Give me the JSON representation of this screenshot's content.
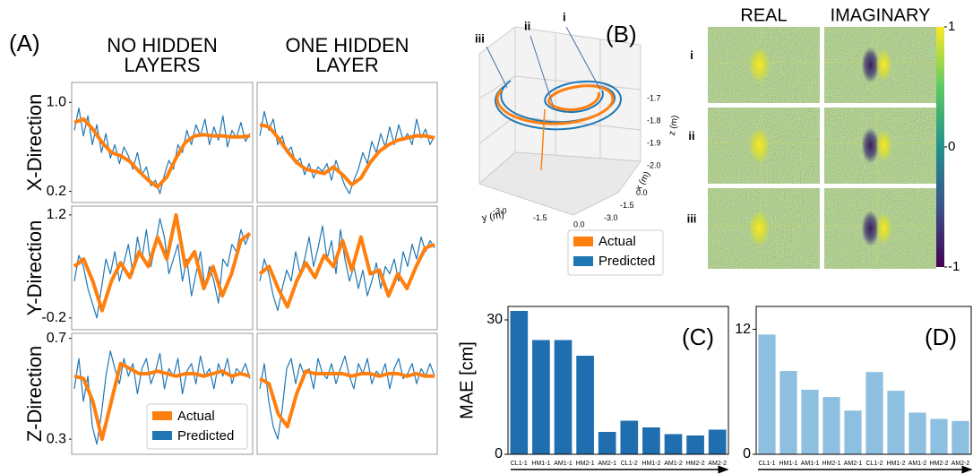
{
  "chart_data": [
    {
      "type": "line-grid",
      "label": "(A)",
      "columns": [
        [
          "NO HIDDEN",
          "LAYERS"
        ],
        [
          "ONE HIDDEN",
          "LAYER"
        ]
      ],
      "series": [
        {
          "name": "Actual",
          "color": "#ff7f0e"
        },
        {
          "name": "Predicted",
          "color": "#1f77b4"
        }
      ],
      "legend": "lower right",
      "rows": [
        {
          "label": "X-Direction",
          "ylim": [
            0.1,
            1.18
          ],
          "yticks": [
            {
              "value": 1,
              "label": "1.0"
            },
            0.2
          ],
          "cells": [
            [
              [
                0.82,
                0.85,
                0.76,
                0.64,
                0.55,
                0.52,
                0.47,
                0.38,
                0.3,
                0.24,
                0.33,
                0.5,
                0.64,
                0.7,
                0.71,
                0.7,
                0.7,
                0.69,
                0.69,
                0.7
              ],
              [
                0.75,
                0.95,
                0.7,
                0.88,
                0.62,
                0.8,
                0.55,
                0.72,
                0.5,
                0.62,
                0.45,
                0.6,
                0.52,
                0.4,
                0.55,
                0.35,
                0.42,
                0.25,
                0.3,
                0.18,
                0.35,
                0.48,
                0.4,
                0.62,
                0.55,
                0.75,
                0.62,
                0.8,
                0.7,
                0.85,
                0.62,
                0.78,
                0.66,
                0.88,
                0.6,
                0.75,
                0.68,
                0.82,
                0.65,
                0.72
              ]
            ],
            [
              [
                0.8,
                0.78,
                0.68,
                0.56,
                0.46,
                0.4,
                0.38,
                0.36,
                0.42,
                0.35,
                0.26,
                0.32,
                0.46,
                0.56,
                0.62,
                0.66,
                0.68,
                0.7,
                0.7,
                0.68
              ],
              [
                0.7,
                0.92,
                0.75,
                0.85,
                0.62,
                0.7,
                0.55,
                0.6,
                0.45,
                0.5,
                0.35,
                0.45,
                0.32,
                0.42,
                0.38,
                0.45,
                0.3,
                0.48,
                0.36,
                0.25,
                0.18,
                0.3,
                0.4,
                0.55,
                0.45,
                0.65,
                0.55,
                0.72,
                0.6,
                0.78,
                0.62,
                0.8,
                0.66,
                0.72,
                0.62,
                0.85,
                0.68,
                0.76,
                0.62,
                0.7
              ]
            ]
          ]
        },
        {
          "label": "Y-Direction",
          "ylim": [
            -0.36,
            1.32
          ],
          "yticks": [
            1.2,
            -0.2
          ],
          "cells": [
            [
              [
                0.5,
                0.6,
                0.3,
                -0.1,
                0.3,
                0.55,
                0.35,
                0.7,
                0.5,
                0.9,
                0.6,
                1.2,
                0.5,
                0.7,
                0.2,
                0.5,
                0.1,
                0.4,
                0.85,
                0.95
              ],
              [
                0.3,
                0.65,
                0.5,
                0.2,
                0.0,
                -0.2,
                0.2,
                0.6,
                0.4,
                0.7,
                0.3,
                0.55,
                0.8,
                0.4,
                0.9,
                0.6,
                1.0,
                0.5,
                0.8,
                1.15,
                0.9,
                0.4,
                0.6,
                0.8,
                0.3,
                0.6,
                0.1,
                0.4,
                0.7,
                0.2,
                0.5,
                0.3,
                0.0,
                0.6,
                0.5,
                0.8,
                0.7,
                1.0,
                0.8,
                0.95
              ]
            ],
            [
              [
                0.4,
                0.5,
                0.2,
                -0.05,
                0.3,
                0.55,
                0.35,
                0.65,
                0.5,
                0.85,
                0.45,
                0.9,
                0.4,
                0.45,
                0.1,
                0.4,
                0.2,
                0.5,
                0.75,
                0.8
              ],
              [
                0.3,
                0.6,
                0.4,
                0.1,
                -0.1,
                0.2,
                0.45,
                0.3,
                0.7,
                0.4,
                0.6,
                0.9,
                0.5,
                0.75,
                1.05,
                0.6,
                0.85,
                0.4,
                1.0,
                0.6,
                0.3,
                0.5,
                0.2,
                0.45,
                0.1,
                0.3,
                0.55,
                0.2,
                0.5,
                0.4,
                0.6,
                0.3,
                0.7,
                0.5,
                0.8,
                0.6,
                0.9,
                0.7,
                0.85,
                0.75
              ]
            ]
          ]
        },
        {
          "label": "Z-Direction",
          "ylim": [
            0.24,
            0.72
          ],
          "yticks": [
            0.7,
            0.3
          ],
          "cells": [
            [
              [
                0.55,
                0.54,
                0.45,
                0.3,
                0.45,
                0.6,
                0.58,
                0.56,
                0.56,
                0.57,
                0.56,
                0.55,
                0.56,
                0.56,
                0.55,
                0.56,
                0.57,
                0.55,
                0.56,
                0.55
              ],
              [
                0.5,
                0.62,
                0.45,
                0.55,
                0.35,
                0.28,
                0.4,
                0.55,
                0.65,
                0.58,
                0.52,
                0.62,
                0.55,
                0.6,
                0.48,
                0.58,
                0.62,
                0.52,
                0.57,
                0.64,
                0.5,
                0.58,
                0.55,
                0.62,
                0.48,
                0.57,
                0.6,
                0.52,
                0.63,
                0.55,
                0.58,
                0.5,
                0.6,
                0.55,
                0.62,
                0.52,
                0.58,
                0.56,
                0.6,
                0.54
              ]
            ],
            [
              [
                0.54,
                0.52,
                0.4,
                0.35,
                0.48,
                0.57,
                0.56,
                0.56,
                0.56,
                0.56,
                0.55,
                0.56,
                0.56,
                0.55,
                0.56,
                0.56,
                0.55,
                0.56,
                0.55,
                0.55
              ],
              [
                0.5,
                0.6,
                0.45,
                0.35,
                0.3,
                0.42,
                0.58,
                0.62,
                0.52,
                0.6,
                0.55,
                0.58,
                0.5,
                0.62,
                0.56,
                0.54,
                0.6,
                0.52,
                0.58,
                0.63,
                0.55,
                0.5,
                0.6,
                0.56,
                0.62,
                0.52,
                0.57,
                0.55,
                0.6,
                0.5,
                0.58,
                0.62,
                0.54,
                0.56,
                0.6,
                0.52,
                0.58,
                0.55,
                0.6,
                0.55
              ]
            ]
          ]
        }
      ]
    },
    {
      "type": "line3d",
      "label": "(B)",
      "annotations": [
        "i",
        "ii",
        "iii"
      ],
      "xlabel": "x (m)",
      "ylabel": "y (m)",
      "zlabel": "z (m)",
      "xlim": [
        -3.5,
        0.5
      ],
      "xticks": [
        {
          "value": -3,
          "label": "-3.0"
        },
        -1.5,
        {
          "value": 0,
          "label": "0.0"
        }
      ],
      "ylim": [
        -3.6,
        0.4
      ],
      "yticks": [
        {
          "value": -3,
          "label": "-3.0"
        },
        -1.5,
        {
          "value": 0,
          "label": "0.0"
        }
      ],
      "zlim": [
        -1.65,
        -2.05
      ],
      "zticks": [
        -1.7,
        -1.8,
        -1.9,
        {
          "value": -2,
          "label": "-2.0"
        }
      ],
      "series": [
        {
          "name": "Actual",
          "color": "#ff7f0e"
        },
        {
          "name": "Predicted",
          "color": "#1f77b4"
        }
      ],
      "legend": "lower right"
    },
    {
      "type": "heatmap-grid",
      "columns": [
        "REAL",
        "IMAGINARY"
      ],
      "rows": [
        "i",
        "ii",
        "iii"
      ],
      "clim": [
        -1,
        1
      ],
      "cticks": [
        1,
        0,
        -1
      ],
      "colormap": "viridis"
    },
    {
      "type": "bar",
      "label": "(C)",
      "ylabel": "MAE [cm]",
      "categories": [
        "CL1-1",
        "HM1-1",
        "AM1-1",
        "HM2-1",
        "AM2-1",
        "CL1-2",
        "HM1-2",
        "AM1-2",
        "HM2-2",
        "AM2-2"
      ],
      "values": [
        32,
        25.5,
        25.5,
        22,
        5,
        7.5,
        6,
        4.5,
        4.2,
        5.5
      ],
      "color": "#1f6fb0",
      "ylim": [
        0,
        33
      ],
      "yticks": [
        0,
        30
      ]
    },
    {
      "type": "bar",
      "label": "(D)",
      "categories": [
        "CL1-1",
        "HM1-1",
        "AM1-1",
        "HM2-1",
        "AM2-1",
        "CL1-2",
        "HM1-2",
        "AM1-2",
        "HM2-2",
        "AM2-2"
      ],
      "values": [
        11.5,
        8.0,
        6.2,
        5.5,
        4.2,
        7.9,
        6.1,
        4.0,
        3.4,
        3.2
      ],
      "color": "#8dbfe0",
      "ylim": [
        0,
        14.2
      ],
      "yticks": [
        0,
        12
      ]
    }
  ]
}
